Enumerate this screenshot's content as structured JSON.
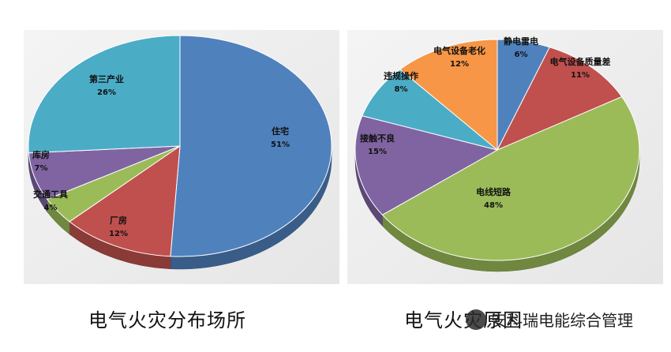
{
  "chart_data": [
    {
      "type": "pie",
      "title": "电气火灾分布场所",
      "slices": [
        {
          "label": "住宅",
          "pct_label": "51%",
          "value": 51,
          "color": "#4f81bd"
        },
        {
          "label": "厂房",
          "pct_label": "12%",
          "value": 12,
          "color": "#c0504d"
        },
        {
          "label": "交通工具",
          "pct_label": "4%",
          "value": 4,
          "color": "#9bbb59"
        },
        {
          "label": "库房",
          "pct_label": "7%",
          "value": 7,
          "color": "#8064a2"
        },
        {
          "label": "第三产业",
          "pct_label": "26%",
          "value": 26,
          "color": "#4bacc6"
        }
      ]
    },
    {
      "type": "pie",
      "title": "电气火灾原因",
      "slices": [
        {
          "label": "静电雷电",
          "pct_label": "6%",
          "value": 6,
          "color": "#4f81bd"
        },
        {
          "label": "电气设备质量差",
          "pct_label": "11%",
          "value": 11,
          "color": "#c0504d"
        },
        {
          "label": "电线短路",
          "pct_label": "48%",
          "value": 48,
          "color": "#9bbb59"
        },
        {
          "label": "接触不良",
          "pct_label": "15%",
          "value": 15,
          "color": "#8064a2"
        },
        {
          "label": "违规操作",
          "pct_label": "8%",
          "value": 8,
          "color": "#4bacc6"
        },
        {
          "label": "电气设备老化",
          "pct_label": "12%",
          "value": 12,
          "color": "#f79646"
        }
      ]
    }
  ],
  "watermark": {
    "text": "安科瑞电能综合管理"
  }
}
